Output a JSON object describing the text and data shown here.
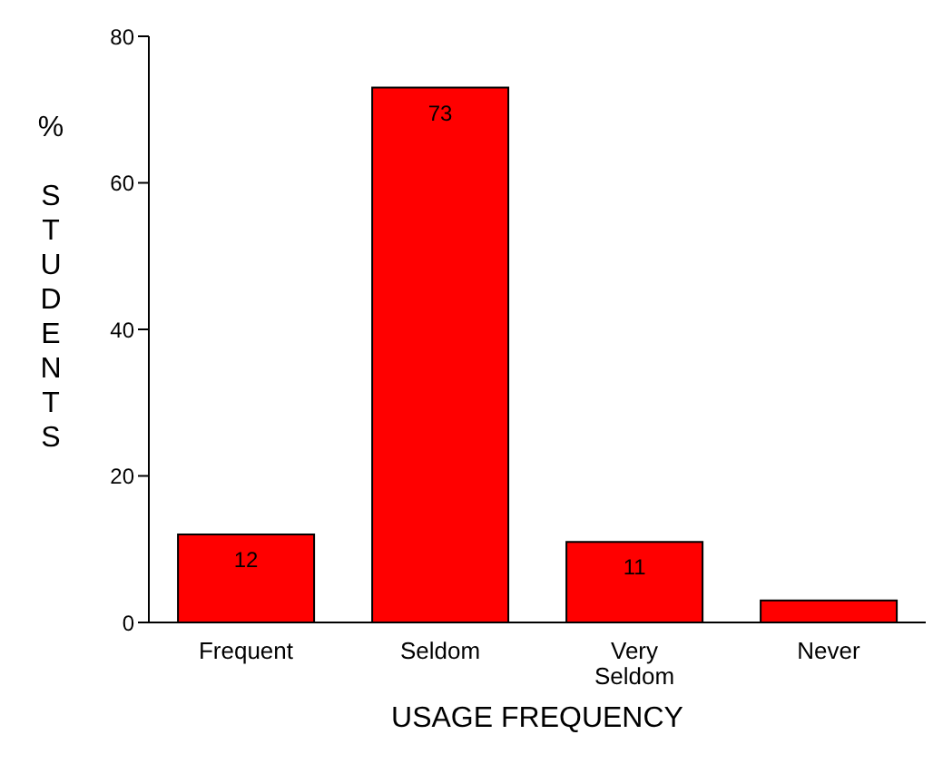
{
  "chart_data": {
    "type": "bar",
    "xlabel": "USAGE FREQUENCY",
    "ylabel": "% STUDENTS",
    "categories": [
      "Frequent",
      "Seldom",
      "Very Seldom",
      "Never"
    ],
    "values": [
      12,
      73,
      11,
      3
    ],
    "value_labels": [
      "12",
      "73",
      "11",
      null
    ],
    "color": "#ff0000",
    "ylim": [
      0,
      80
    ],
    "yticks": [
      0,
      20,
      40,
      60,
      80
    ],
    "grid": false,
    "legend": false
  }
}
